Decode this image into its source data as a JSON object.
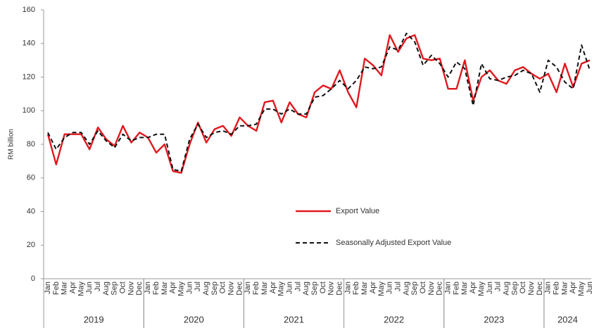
{
  "chart_data": {
    "type": "line",
    "y_label": "RM billion",
    "categories": [
      "Jan",
      "Feb",
      "Mar",
      "Apr",
      "May",
      "Jun",
      "Jul",
      "Aug",
      "Sep",
      "Oct",
      "Nov",
      "Dec",
      "Jan",
      "Feb",
      "Mar",
      "Apr",
      "May",
      "Jun",
      "Jul",
      "Aug",
      "Sep",
      "Oct",
      "Nov",
      "Dec",
      "Jan",
      "Feb",
      "Mar",
      "Apr",
      "May",
      "Jun",
      "Jul",
      "Aug",
      "Sep",
      "Oct",
      "Nov",
      "Dec",
      "Jan",
      "Feb",
      "Mar",
      "Apr",
      "May",
      "Jun",
      "Jul",
      "Aug",
      "Sep",
      "Oct",
      "Nov",
      "Dec",
      "Jan",
      "Feb",
      "Mar",
      "Apr",
      "May",
      "Jun",
      "Jul",
      "Aug",
      "Sep",
      "Oct",
      "Nov",
      "Dec",
      "Jan",
      "Feb",
      "Mar",
      "Apr",
      "May",
      "Jun"
    ],
    "years": [
      "2019",
      "2020",
      "2021",
      "2022",
      "2023",
      "2024"
    ],
    "series": [
      {
        "name": "Export Value",
        "color": "#e0191f",
        "dash": false,
        "values": [
          86,
          68,
          86,
          86,
          86,
          77,
          90,
          83,
          79,
          91,
          81,
          87,
          84,
          75,
          80,
          64,
          63,
          80,
          93,
          81,
          89,
          91,
          85,
          96,
          91,
          88,
          105,
          106,
          93,
          105,
          98,
          96,
          111,
          115,
          113,
          124,
          111,
          102,
          131,
          127,
          121,
          145,
          135,
          143,
          145,
          131,
          130,
          131,
          113,
          113,
          130,
          106,
          120,
          124,
          118,
          116,
          124,
          126,
          122,
          119,
          122,
          111,
          128,
          114,
          128,
          130
        ]
      },
      {
        "name": "Seasonally Adjusted Export Value",
        "color": "#111111",
        "dash": true,
        "values": [
          87,
          77,
          84,
          87,
          87,
          80,
          88,
          82,
          78,
          86,
          82,
          84,
          84,
          86,
          86,
          65,
          64,
          83,
          92,
          84,
          87,
          88,
          86,
          91,
          91,
          92,
          101,
          101,
          98,
          101,
          98,
          98,
          108,
          109,
          113,
          118,
          113,
          118,
          126,
          125,
          126,
          138,
          136,
          146,
          141,
          127,
          133,
          128,
          120,
          129,
          125,
          103,
          128,
          119,
          118,
          120,
          121,
          124,
          122,
          111,
          130,
          126,
          117,
          113,
          139,
          124
        ]
      }
    ],
    "ylim": [
      0,
      160
    ],
    "yticks": [
      0,
      20,
      40,
      60,
      80,
      100,
      120,
      140,
      160
    ],
    "grid": false,
    "legend": "center"
  }
}
